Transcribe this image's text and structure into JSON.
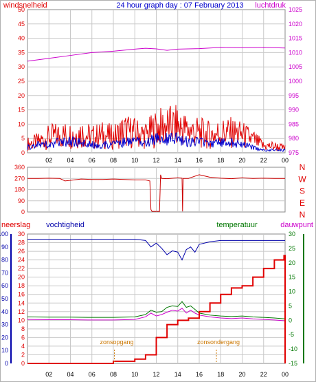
{
  "header": {
    "left_label": "windsnelheid",
    "title": "24 hour graph day : 07 February 2013",
    "right_label": "luchtdruk"
  },
  "colors": {
    "red": "#e00000",
    "magenta": "#cc00cc",
    "blue": "#0000aa",
    "green": "#007700",
    "orange": "#cc7700",
    "grid": "#c8c8c8",
    "panel_bg": "#ffffff"
  },
  "x_ticks": [
    "02",
    "04",
    "06",
    "08",
    "10",
    "12",
    "14",
    "16",
    "18",
    "20",
    "22",
    "00"
  ],
  "wind_dir_labels": [
    "N",
    "W",
    "S",
    "E",
    "N"
  ],
  "bottom_labels": {
    "neerslag": "neerslag",
    "vochtigheid": "vochtigheid",
    "temperatuur": "temperatuur",
    "dauwpunt": "dauwpunt"
  },
  "annotations": {
    "sunrise": "zonsopgang",
    "sunset": "zonsondergang"
  },
  "chart_data": [
    {
      "type": "line",
      "name": "windsnelheid / luchtdruk",
      "x_range": [
        0,
        24
      ],
      "y_left_ticks": [
        "0",
        "5",
        "10",
        "15",
        "20",
        "25",
        "30",
        "35",
        "40",
        "45",
        "50"
      ],
      "y_right_ticks": [
        "975",
        "980",
        "985",
        "990",
        "995",
        "1000",
        "1005",
        "1010",
        "1015",
        "1020",
        "1025"
      ],
      "ylim_left": [
        0,
        50
      ],
      "ylim_right": [
        975,
        1025
      ],
      "series": [
        {
          "name": "windsnelheid",
          "color": "#e00000",
          "x": [
            0,
            1,
            2,
            3,
            4,
            5,
            6,
            7,
            8,
            9,
            10,
            11,
            12,
            13,
            14,
            15,
            16,
            17,
            18,
            19,
            20,
            21,
            22,
            23,
            24
          ],
          "values": [
            4,
            5,
            7,
            8,
            8,
            9,
            7,
            8,
            7,
            10,
            9,
            8,
            11,
            12,
            12,
            10,
            9,
            8,
            9,
            9,
            8,
            6,
            3,
            3,
            2
          ]
        },
        {
          "name": "windsnelheid-avg",
          "color": "#0000cc",
          "x": [
            0,
            1,
            2,
            3,
            4,
            5,
            6,
            7,
            8,
            9,
            10,
            11,
            12,
            13,
            14,
            15,
            16,
            17,
            18,
            19,
            20,
            21,
            22,
            23,
            24
          ],
          "values": [
            2,
            3,
            3,
            4,
            4,
            4,
            3,
            3,
            3,
            4,
            4,
            4,
            5,
            5,
            5,
            4,
            4,
            3,
            4,
            4,
            3,
            2,
            1,
            1,
            1
          ]
        },
        {
          "name": "luchtdruk",
          "color": "#cc00cc",
          "x": [
            0,
            2,
            4,
            6,
            8,
            10,
            11,
            12,
            13,
            14,
            16,
            18,
            20,
            22,
            24
          ],
          "values": [
            1007,
            1008,
            1009,
            1010,
            1010.5,
            1011.2,
            1011.5,
            1011.3,
            1010.8,
            1011.2,
            1011.4,
            1011.8,
            1011.7,
            1011.8,
            1011.6
          ]
        }
      ]
    },
    {
      "type": "line",
      "name": "windrichting",
      "x_range": [
        0,
        24
      ],
      "y_ticks": [
        "360",
        "270",
        "180",
        "90",
        "0"
      ],
      "ylim": [
        0,
        360
      ],
      "series": [
        {
          "name": "windrichting",
          "color": "#cc0000",
          "x": [
            0,
            1,
            2,
            3,
            3.5,
            4,
            5,
            6,
            7,
            8,
            9,
            10,
            11,
            11.4,
            11.5,
            11.6,
            12.3,
            12.4,
            12.5,
            13,
            14,
            14.4,
            14.45,
            14.5,
            15,
            16,
            17,
            18,
            19,
            20,
            21,
            22,
            23,
            24
          ],
          "values": [
            270,
            270,
            272,
            270,
            250,
            255,
            265,
            262,
            262,
            265,
            262,
            258,
            258,
            250,
            20,
            5,
            5,
            300,
            270,
            268,
            275,
            272,
            5,
            270,
            270,
            300,
            280,
            272,
            268,
            275,
            270,
            272,
            270,
            270
          ]
        }
      ]
    },
    {
      "type": "line",
      "name": "neerslag / vochtigheid / temperatuur / dauwpunt",
      "x_range": [
        0,
        24
      ],
      "y_left_ticks": [
        "0",
        "10",
        "20",
        "30",
        "40",
        "50",
        "60",
        "70",
        "80",
        "90",
        "100"
      ],
      "y_mid_ticks": [
        "0",
        "2",
        "4",
        "6",
        "8",
        "10",
        "12",
        "14",
        "16",
        "18",
        "20",
        "22",
        "24",
        "26",
        "28",
        "30"
      ],
      "y_right_ticks": [
        "-15",
        "-10",
        "-5",
        "0",
        "5",
        "10",
        "15",
        "20",
        "25",
        "30"
      ],
      "ylim_left": [
        0,
        100
      ],
      "ylim_right": [
        -15,
        30
      ],
      "series": [
        {
          "name": "vochtigheid",
          "color": "#0000aa",
          "x": [
            0,
            2,
            4,
            6,
            8,
            10,
            11,
            11.5,
            12,
            12.5,
            13,
            13.5,
            14,
            14.4,
            14.8,
            15.2,
            15.6,
            16,
            17,
            18,
            19,
            20,
            21,
            22,
            23,
            24
          ],
          "values": [
            96,
            96,
            96,
            96,
            96,
            96,
            95,
            90,
            93,
            89,
            84,
            87,
            86,
            80,
            88,
            90,
            86,
            92,
            94,
            95,
            95,
            95,
            95,
            95,
            95,
            95
          ]
        },
        {
          "name": "temperatuur",
          "color": "#007700",
          "x": [
            0,
            2,
            4,
            6,
            8,
            10,
            11,
            11.5,
            12,
            12.5,
            13,
            13.5,
            14,
            14.4,
            14.8,
            15.2,
            15.6,
            16,
            17,
            18,
            19,
            20,
            21,
            22,
            23,
            24
          ],
          "values": [
            1.2,
            1.1,
            1.1,
            1.0,
            1.0,
            1.2,
            2.0,
            3.5,
            2.8,
            3.0,
            4.5,
            5.0,
            4.8,
            6.5,
            4.5,
            5.0,
            3.8,
            2.5,
            1.8,
            1.5,
            1.3,
            1.5,
            1.2,
            1.0,
            0.8,
            0.5
          ]
        },
        {
          "name": "dauwpunt",
          "color": "#cc00cc",
          "x": [
            0,
            2,
            4,
            6,
            8,
            10,
            11,
            11.5,
            12,
            12.5,
            13,
            13.5,
            14,
            14.4,
            14.8,
            15.2,
            15.6,
            16,
            17,
            18,
            19,
            20,
            21,
            22,
            23,
            24
          ],
          "values": [
            0.3,
            0.2,
            0.2,
            0.1,
            0.1,
            0.3,
            1.2,
            2.5,
            1.5,
            2.0,
            2.8,
            3.5,
            3.2,
            4.2,
            2.5,
            3.5,
            2.5,
            1.8,
            1.2,
            0.8,
            0.6,
            0.8,
            0.5,
            0.3,
            0.1,
            -0.2
          ]
        },
        {
          "name": "neerslag",
          "color": "#e00000",
          "x": [
            0,
            6,
            8,
            10,
            11,
            12,
            13,
            14,
            15,
            16,
            17,
            18,
            19,
            20,
            21,
            22,
            23,
            23.9,
            24
          ],
          "values": [
            0,
            0,
            0.5,
            1,
            2,
            6,
            9,
            10,
            10.5,
            12,
            14,
            16,
            17.5,
            18,
            20,
            22,
            24,
            25,
            0
          ]
        }
      ],
      "sunrise_hour": 8.1,
      "sunset_hour": 17.6
    }
  ]
}
